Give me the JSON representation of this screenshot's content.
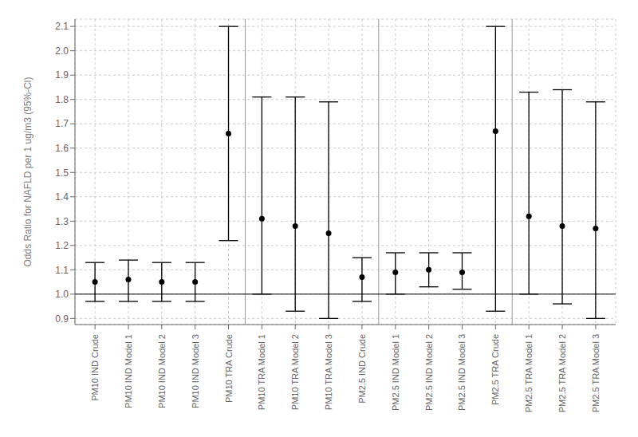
{
  "chart_data": {
    "type": "scatter",
    "ylabel": "Odds Ratio for NAFLD per 1 ug/m3 (95%-Cl)",
    "categories": [
      "PM10 IND Crude",
      "PM10 IND Model 1",
      "PM10 IND Model 2",
      "PM10 IND Model 3",
      "PM10 TRA Crude",
      "PM10 TRA Model 1",
      "PM10 TRA Model 2",
      "PM10 TRA Model 3",
      "PM2.5 IND Crude",
      "PM2.5 IND Model 1",
      "PM2.5 IND Model 2",
      "PM2.5 IND Model 3",
      "PM2.5 TRA Crude",
      "PM2.5 TRA Model 1",
      "PM2.5 TRA Model 2",
      "PM2.5 TRA Model 3"
    ],
    "values": [
      1.05,
      1.06,
      1.05,
      1.05,
      1.66,
      1.31,
      1.28,
      1.25,
      1.07,
      1.09,
      1.1,
      1.09,
      1.67,
      1.32,
      1.28,
      1.27
    ],
    "ci_lower": [
      0.97,
      0.97,
      0.97,
      0.97,
      1.22,
      1.0,
      0.93,
      0.9,
      0.97,
      1.0,
      1.03,
      1.02,
      0.93,
      1.0,
      0.96,
      0.9
    ],
    "ci_upper": [
      1.13,
      1.14,
      1.13,
      1.13,
      2.1,
      1.81,
      1.81,
      1.79,
      1.15,
      1.17,
      1.17,
      1.17,
      2.1,
      1.83,
      1.84,
      1.79
    ],
    "ylim": [
      0.875,
      2.13
    ],
    "yticks": [
      0.9,
      {
        "value": 1.0,
        "label": "1.0"
      },
      1.1,
      1.2,
      1.3,
      1.4,
      1.5,
      1.6,
      1.7,
      1.8,
      1.9,
      {
        "value": 2.0,
        "label": "2.0"
      },
      2.1
    ],
    "hline_y": 1.0,
    "separators": [
      4.5,
      8.5,
      12.5
    ],
    "color": "black",
    "grid": true
  }
}
